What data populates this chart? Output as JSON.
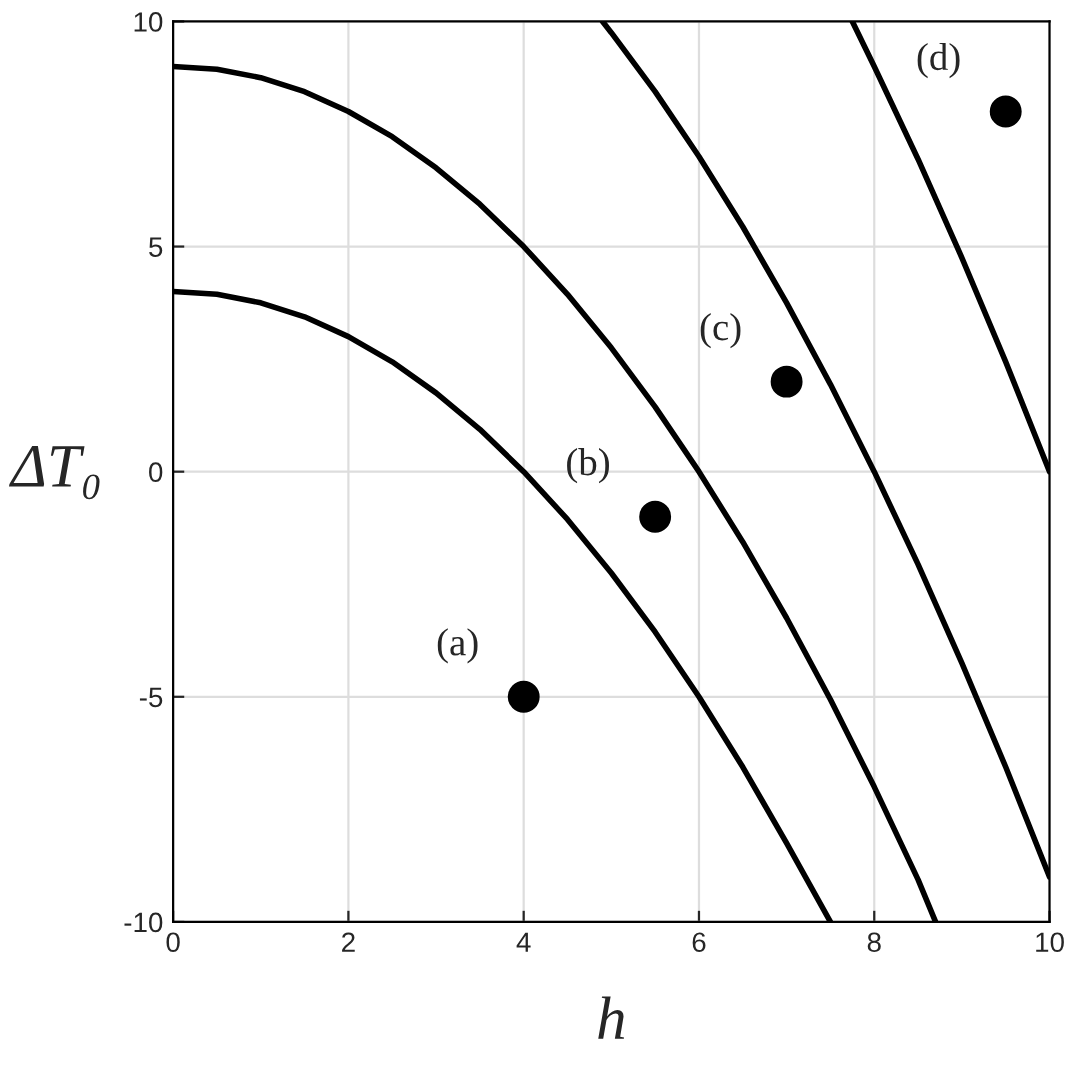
{
  "chart_data": {
    "type": "line",
    "xlabel": "h",
    "ylabel": "ΔT₀",
    "xlim": [
      0,
      10
    ],
    "ylim": [
      -10,
      10
    ],
    "xticks": [
      0,
      2,
      4,
      6,
      8,
      10
    ],
    "yticks": [
      -10,
      -5,
      0,
      5,
      10
    ],
    "grid": true,
    "series": [
      {
        "color": "#000000",
        "x": [
          0,
          0.5,
          1,
          1.5,
          2,
          2.5,
          3,
          3.5,
          4,
          4.5,
          5,
          5.5,
          6,
          6.5,
          7,
          7.5
        ],
        "values": [
          4,
          3.94,
          3.75,
          3.44,
          3,
          2.44,
          1.75,
          0.94,
          0,
          -1.06,
          -2.25,
          -3.56,
          -5,
          -6.56,
          -8.25,
          -10
        ]
      },
      {
        "color": "#000000",
        "x": [
          0,
          0.5,
          1,
          1.5,
          2,
          2.5,
          3,
          3.5,
          4,
          4.5,
          5,
          5.5,
          6,
          6.5,
          7,
          7.5,
          8,
          8.5,
          8.7
        ],
        "values": [
          9,
          8.94,
          8.75,
          8.44,
          8,
          7.44,
          6.75,
          5.94,
          5,
          3.94,
          2.75,
          1.44,
          0,
          -1.56,
          -3.25,
          -5.06,
          -7,
          -9.06,
          -10
        ]
      },
      {
        "color": "#000000",
        "x": [
          4.9,
          5,
          5.5,
          6,
          6.5,
          7,
          7.5,
          8,
          8.5,
          9,
          9.5,
          10
        ],
        "values": [
          10,
          9.75,
          8.44,
          7,
          5.44,
          3.75,
          1.94,
          0,
          -2.06,
          -4.25,
          -6.56,
          -9
        ]
      },
      {
        "color": "#000000",
        "x": [
          7.75,
          8,
          8.5,
          9,
          9.5,
          10
        ],
        "values": [
          10,
          9,
          6.94,
          4.75,
          2.44,
          0
        ]
      },
      {
        "type": "scatter",
        "marker": "circle",
        "color": "#000000",
        "x": [
          4,
          5.5,
          7,
          9.5
        ],
        "values": [
          -5,
          -1,
          2,
          8
        ]
      }
    ],
    "annotations": [
      {
        "text": "(a)",
        "x": 4,
        "y": -5
      },
      {
        "text": "(b)",
        "x": 5.5,
        "y": -1
      },
      {
        "text": "(c)",
        "x": 7,
        "y": 2
      },
      {
        "text": "(d)",
        "x": 9.5,
        "y": 8
      }
    ]
  }
}
